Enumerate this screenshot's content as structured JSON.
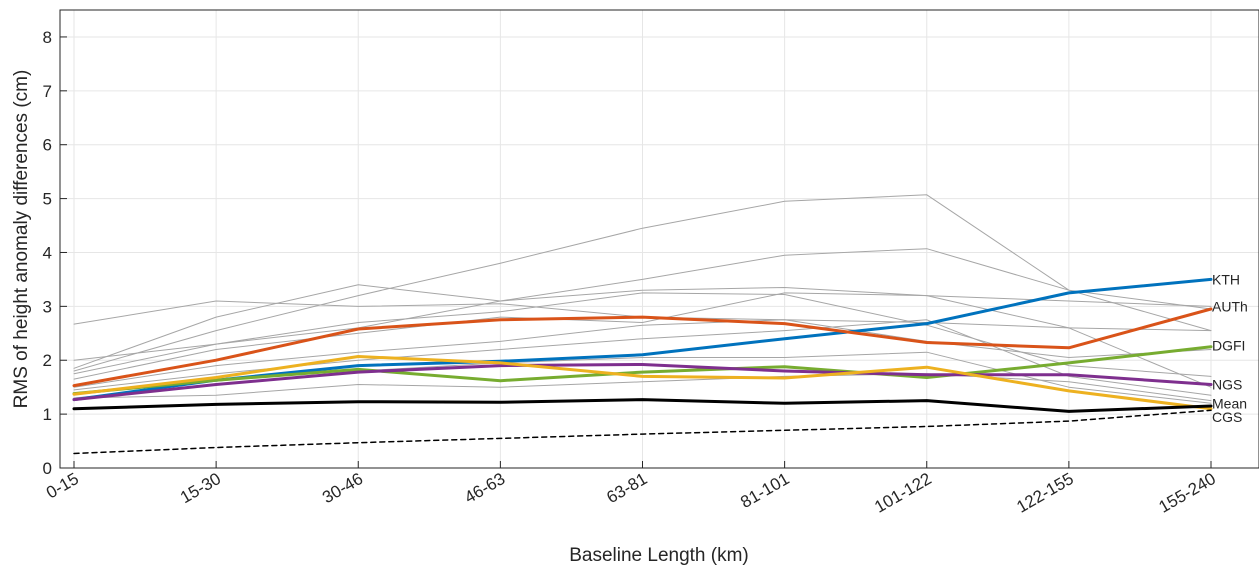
{
  "chart_data": {
    "type": "line",
    "title": "",
    "xlabel": "Baseline Length (km)",
    "ylabel": "RMS of height anomaly differences (cm)",
    "categories": [
      "0-15",
      "15-30",
      "30-46",
      "46-63",
      "63-81",
      "81-101",
      "101-122",
      "122-155",
      "155-240"
    ],
    "ylim": [
      0,
      8.5
    ],
    "yticks": [
      0,
      1,
      2,
      3,
      4,
      5,
      6,
      7,
      8
    ],
    "grid": true,
    "legend": "none",
    "series": [
      {
        "name": "KTH",
        "color": "#0072bd",
        "width": 3,
        "values": [
          1.27,
          1.63,
          1.9,
          1.98,
          2.1,
          2.4,
          2.68,
          3.25,
          3.5
        ]
      },
      {
        "name": "AUTh",
        "color": "#d95319",
        "width": 3,
        "values": [
          1.53,
          2.0,
          2.58,
          2.75,
          2.8,
          2.68,
          2.33,
          2.23,
          2.95
        ]
      },
      {
        "name": "DGFI",
        "color": "#77ac30",
        "width": 3,
        "values": [
          1.38,
          1.63,
          1.83,
          1.62,
          1.78,
          1.88,
          1.68,
          1.95,
          2.25
        ]
      },
      {
        "name": "NGS",
        "color": "#7e2f8e",
        "width": 3,
        "values": [
          1.27,
          1.55,
          1.78,
          1.9,
          1.92,
          1.8,
          1.73,
          1.73,
          1.55
        ]
      },
      {
        "name": "CGS",
        "color": "#edb120",
        "width": 3,
        "values": [
          1.37,
          1.68,
          2.07,
          1.95,
          1.7,
          1.67,
          1.87,
          1.43,
          1.1
        ]
      },
      {
        "name": "Mean",
        "color": "#000000",
        "width": 3,
        "values": [
          1.1,
          1.18,
          1.23,
          1.22,
          1.27,
          1.2,
          1.25,
          1.05,
          1.15
        ]
      },
      {
        "name": "",
        "color": "#000000",
        "width": 1.5,
        "dash": "5,4",
        "values": [
          0.27,
          0.38,
          0.47,
          0.55,
          0.63,
          0.7,
          0.77,
          0.87,
          1.07
        ]
      },
      {
        "name": "",
        "color": "#a6a6a6",
        "width": 1,
        "values": [
          2.67,
          3.1,
          3.0,
          3.05,
          2.8,
          2.75,
          2.7,
          2.6,
          2.55
        ]
      },
      {
        "name": "",
        "color": "#a6a6a6",
        "width": 1,
        "values": [
          1.85,
          2.8,
          3.4,
          3.1,
          3.3,
          3.35,
          3.2,
          3.1,
          3.0
        ]
      },
      {
        "name": "",
        "color": "#a6a6a6",
        "width": 1,
        "values": [
          1.8,
          2.55,
          3.2,
          3.8,
          4.45,
          4.95,
          5.07,
          3.3,
          2.55
        ]
      },
      {
        "name": "",
        "color": "#a6a6a6",
        "width": 1,
        "values": [
          1.75,
          2.3,
          2.6,
          3.1,
          3.5,
          3.95,
          4.07,
          3.3,
          2.95
        ]
      },
      {
        "name": "",
        "color": "#a6a6a6",
        "width": 1,
        "values": [
          2.0,
          2.3,
          2.7,
          2.9,
          3.25,
          3.22,
          2.65,
          1.9,
          1.7
        ]
      },
      {
        "name": "",
        "color": "#a6a6a6",
        "width": 1,
        "values": [
          1.65,
          2.2,
          2.5,
          2.8,
          2.7,
          3.25,
          3.2,
          2.6,
          1.5
        ]
      },
      {
        "name": "",
        "color": "#a6a6a6",
        "width": 1,
        "values": [
          1.5,
          1.9,
          2.15,
          2.35,
          2.65,
          2.75,
          2.35,
          2.05,
          2.2
        ]
      },
      {
        "name": "",
        "color": "#a6a6a6",
        "width": 1,
        "values": [
          1.45,
          1.75,
          2.0,
          2.2,
          2.4,
          2.55,
          2.75,
          1.7,
          1.35
        ]
      },
      {
        "name": "",
        "color": "#a6a6a6",
        "width": 1,
        "values": [
          1.3,
          1.55,
          1.8,
          1.95,
          2.05,
          2.05,
          2.15,
          1.5,
          1.2
        ]
      },
      {
        "name": "",
        "color": "#a6a6a6",
        "width": 1,
        "values": [
          1.3,
          1.35,
          1.55,
          1.5,
          1.6,
          1.7,
          1.75,
          1.6,
          1.25
        ]
      }
    ],
    "end_labels": [
      {
        "text": "KTH",
        "value": 3.5
      },
      {
        "text": "AUTh",
        "value": 3.0
      },
      {
        "text": "DGFI",
        "value": 2.27
      },
      {
        "text": "NGS",
        "value": 1.55
      },
      {
        "text": "Mean",
        "value": 1.2
      },
      {
        "text": "CGS",
        "value": 0.95
      }
    ]
  }
}
